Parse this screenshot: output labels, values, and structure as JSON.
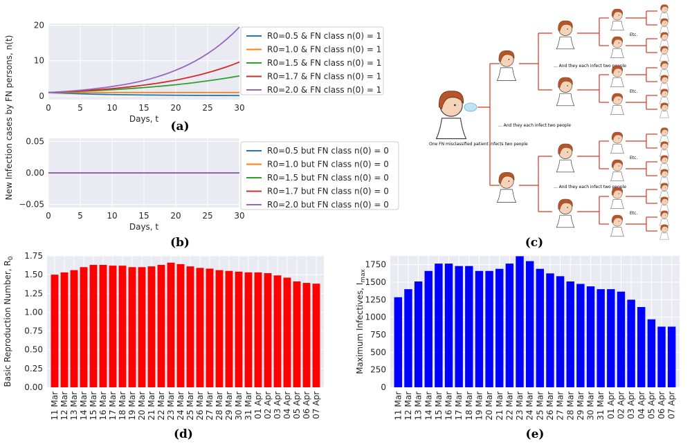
{
  "shared_ylabel": "New Infection cases by FN persons, n(t)",
  "panels": {
    "a": "(a)",
    "b": "(b)",
    "c": "(c)",
    "d": "(d)",
    "e": "(e)"
  },
  "colors": {
    "series": [
      "#1f77b4",
      "#ff7f0e",
      "#2ca02c",
      "#d62728",
      "#9467bd"
    ],
    "plot_bg": "#eaeaf2",
    "grid": "#ffffff",
    "bar_d": "#ff0000",
    "bar_e": "#0000ff",
    "tree": "#e0301e"
  },
  "diagram": {
    "label1": "One FN misclassified patient infects two people",
    "label2": "... And they each infect two people",
    "label3": "... And they each infect two people",
    "label4": "... And they each infect two people",
    "etc": "Etc."
  },
  "chart_data": [
    {
      "id": "a",
      "type": "line",
      "xlabel": "Days, t",
      "ylabel": "",
      "xlim": [
        0,
        30
      ],
      "ylim": [
        -1,
        20.5
      ],
      "xticks": [
        0,
        5,
        10,
        15,
        20,
        25,
        30
      ],
      "yticks": [
        0,
        10,
        20
      ],
      "x": [
        0,
        5,
        10,
        15,
        20,
        25,
        30
      ],
      "series": [
        {
          "name": "R0=0.5 & FN class n(0) = 1",
          "values": [
            1.0,
            0.65,
            0.42,
            0.3,
            0.22,
            0.17,
            0.14
          ]
        },
        {
          "name": "R0=1.0 & FN class n(0) = 1",
          "values": [
            1.0,
            1.0,
            1.0,
            1.0,
            1.0,
            1.0,
            1.0
          ]
        },
        {
          "name": "R0=1.5 & FN class n(0) = 1",
          "values": [
            1.0,
            1.34,
            1.8,
            2.4,
            3.2,
            4.3,
            5.7
          ]
        },
        {
          "name": "R0=1.7 & FN class n(0) = 1",
          "values": [
            1.0,
            1.45,
            2.1,
            3.1,
            4.5,
            6.6,
            9.6
          ]
        },
        {
          "name": "R0=2.0 & FN class n(0) = 1",
          "values": [
            1.0,
            1.64,
            2.7,
            4.4,
            7.3,
            12.0,
            19.5
          ]
        }
      ]
    },
    {
      "id": "b",
      "type": "line",
      "xlabel": "Days, t",
      "ylabel": "",
      "xlim": [
        0,
        30
      ],
      "ylim": [
        -0.055,
        0.055
      ],
      "xticks": [
        0,
        5,
        10,
        15,
        20,
        25,
        30
      ],
      "yticks": [
        -0.05,
        0.0,
        0.05
      ],
      "ytick_labels": [
        "−0.05",
        "0.00",
        "0.05"
      ],
      "x": [
        0,
        5,
        10,
        15,
        20,
        25,
        30
      ],
      "series": [
        {
          "name": "R0=0.5 but FN class n(0) = 0",
          "values": [
            0,
            0,
            0,
            0,
            0,
            0,
            0
          ]
        },
        {
          "name": "R0=1.0 but FN class n(0) = 0",
          "values": [
            0,
            0,
            0,
            0,
            0,
            0,
            0
          ]
        },
        {
          "name": "R0=1.5 but FN class n(0) = 0",
          "values": [
            0,
            0,
            0,
            0,
            0,
            0,
            0
          ]
        },
        {
          "name": "R0=1.7 but FN class n(0) = 0",
          "values": [
            0,
            0,
            0,
            0,
            0,
            0,
            0
          ]
        },
        {
          "name": "R0=2.0 but FN class n(0) = 0",
          "values": [
            0,
            0,
            0,
            0,
            0,
            0,
            0
          ]
        }
      ]
    },
    {
      "id": "d",
      "type": "bar",
      "ylabel": "Basic Reproduction Number, R",
      "ylabel_sub": "0",
      "ylim": [
        0,
        1.75
      ],
      "yticks": [
        0,
        0.25,
        0.5,
        0.75,
        1.0,
        1.25,
        1.5,
        1.75
      ],
      "ytick_labels": [
        "0.00",
        "0.25",
        "0.50",
        "0.75",
        "1.00",
        "1.25",
        "1.50",
        "1.75"
      ],
      "categories": [
        "11 Mar",
        "12 Mar",
        "13 Mar",
        "14 Mar",
        "15 Mar",
        "16 Mar",
        "17 Mar",
        "18 Mar",
        "19 Mar",
        "20 Mar",
        "21 Mar",
        "22 Mar",
        "23 Mar",
        "24 Mar",
        "25 Mar",
        "26 Mar",
        "27 Mar",
        "28 Mar",
        "29 Mar",
        "30 Mar",
        "31 Mar",
        "01 Apr",
        "02 Apr",
        "03 Apr",
        "04 Apr",
        "05 Apr",
        "06 Apr",
        "07 Apr"
      ],
      "values": [
        1.5,
        1.53,
        1.56,
        1.6,
        1.63,
        1.63,
        1.62,
        1.62,
        1.6,
        1.6,
        1.61,
        1.63,
        1.66,
        1.64,
        1.61,
        1.59,
        1.58,
        1.56,
        1.55,
        1.54,
        1.53,
        1.53,
        1.52,
        1.49,
        1.46,
        1.41,
        1.39,
        1.38
      ]
    },
    {
      "id": "e",
      "type": "bar",
      "ylabel": "Maximum Infectives, I",
      "ylabel_sub": "max",
      "ylim": [
        0,
        1875
      ],
      "yticks": [
        0,
        250,
        500,
        750,
        1000,
        1250,
        1500,
        1750
      ],
      "ytick_labels": [
        "0",
        "250",
        "500",
        "750",
        "1000",
        "1250",
        "1500",
        "1750"
      ],
      "categories": [
        "11 Mar",
        "12 Mar",
        "13 Mar",
        "14 Mar",
        "15 Mar",
        "16 Mar",
        "17 Mar",
        "18 Mar",
        "19 Mar",
        "20 Mar",
        "21 Mar",
        "22 Mar",
        "23 Mar",
        "24 Mar",
        "25 Mar",
        "26 Mar",
        "27 Mar",
        "28 Mar",
        "29 Mar",
        "30 Mar",
        "31 Mar",
        "01 Apr",
        "02 Apr",
        "03 Apr",
        "04 Apr",
        "05 Apr",
        "06 Apr",
        "07 Apr"
      ],
      "values": [
        1285,
        1400,
        1510,
        1660,
        1765,
        1765,
        1730,
        1730,
        1660,
        1660,
        1690,
        1765,
        1870,
        1800,
        1690,
        1625,
        1585,
        1510,
        1475,
        1440,
        1400,
        1400,
        1365,
        1250,
        1145,
        970,
        865,
        865
      ]
    }
  ]
}
